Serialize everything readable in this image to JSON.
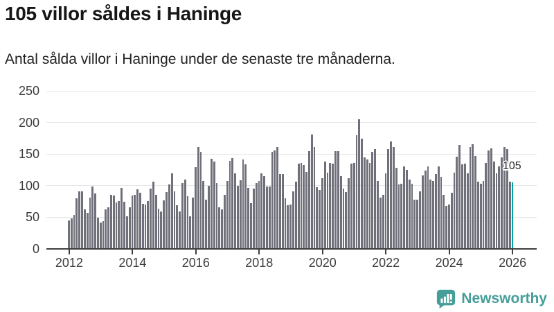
{
  "header": {
    "title": "105 villor såldes i Haninge",
    "subtitle": "Antal sålda villor i Haninge under de senaste tre månaderna."
  },
  "chart_data": {
    "type": "bar",
    "title": "105 villor såldes i Haninge",
    "subtitle": "Antal sålda villor i Haninge under de senaste tre månaderna.",
    "xlabel": "",
    "ylabel": "",
    "ylim": [
      0,
      250
    ],
    "y_ticks": [
      0,
      50,
      100,
      150,
      200,
      250
    ],
    "x_tick_years": [
      2012,
      2014,
      2016,
      2018,
      2020,
      2022,
      2024,
      2026
    ],
    "x_start": "2012-01",
    "x_end": "2026-01",
    "grid": "horizontal",
    "bar_color": "#70707a",
    "highlight_color": "#00a1a4",
    "highlight_last": true,
    "annotation_label": "105",
    "values": [
      45,
      48,
      54,
      80,
      91,
      91,
      63,
      57,
      81,
      99,
      88,
      49,
      42,
      44,
      62,
      66,
      85,
      84,
      73,
      76,
      97,
      75,
      51,
      66,
      84,
      86,
      94,
      89,
      71,
      70,
      76,
      95,
      106,
      85,
      64,
      59,
      77,
      90,
      102,
      119,
      91,
      69,
      59,
      104,
      110,
      83,
      51,
      81,
      129,
      161,
      153,
      108,
      78,
      100,
      142,
      138,
      104,
      66,
      63,
      85,
      108,
      139,
      144,
      119,
      100,
      109,
      141,
      134,
      97,
      72,
      95,
      104,
      108,
      119,
      115,
      99,
      99,
      153,
      156,
      161,
      118,
      118,
      80,
      69,
      70,
      91,
      106,
      135,
      136,
      133,
      122,
      155,
      181,
      161,
      98,
      93,
      112,
      138,
      121,
      136,
      135,
      155,
      155,
      115,
      95,
      90,
      112,
      135,
      136,
      180,
      205,
      174,
      145,
      141,
      136,
      153,
      158,
      108,
      81,
      85,
      119,
      158,
      170,
      161,
      128,
      102,
      103,
      130,
      125,
      110,
      103,
      78,
      78,
      91,
      116,
      124,
      130,
      110,
      108,
      118,
      130,
      114,
      85,
      68,
      70,
      89,
      121,
      146,
      165,
      134,
      135,
      119,
      161,
      166,
      147,
      106,
      103,
      108,
      136,
      156,
      159,
      138,
      119,
      131,
      145,
      161,
      158,
      106,
      105
    ]
  },
  "footer": {
    "brand": "Newsworthy",
    "brand_color": "#459e98"
  }
}
